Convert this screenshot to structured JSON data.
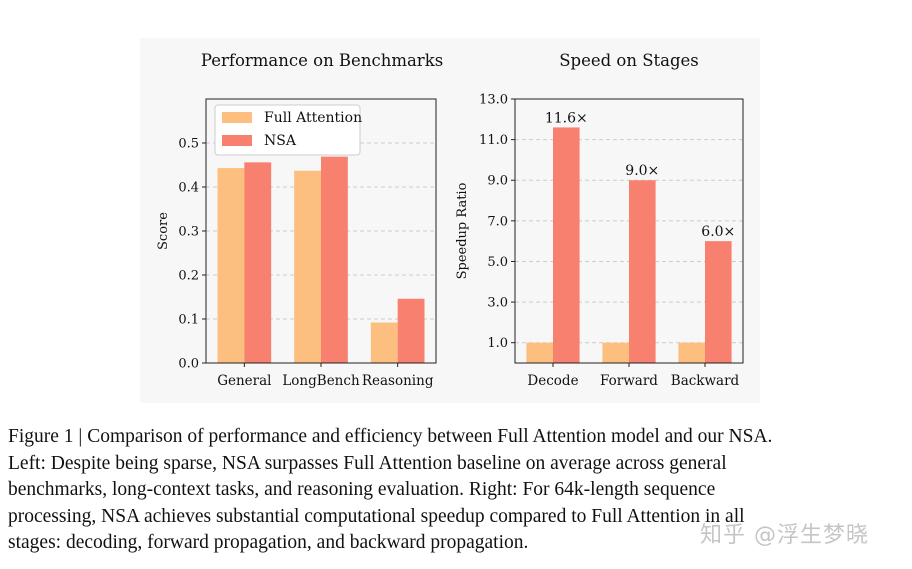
{
  "chart_data": [
    {
      "type": "bar",
      "title": "Performance on Benchmarks",
      "xlabel": "",
      "ylabel": "Score",
      "ylim": [
        0,
        0.6
      ],
      "yticks": [
        "0.0",
        "0.1",
        "0.2",
        "0.3",
        "0.4",
        "0.5"
      ],
      "categories": [
        "General",
        "LongBench",
        "Reasoning"
      ],
      "series": [
        {
          "name": "Full Attention",
          "values": [
            0.443,
            0.437,
            0.092
          ],
          "color": "#fdbf7f"
        },
        {
          "name": "NSA",
          "values": [
            0.456,
            0.469,
            0.146
          ],
          "color": "#f7806f"
        }
      ],
      "legend": "top-left",
      "grid": "horizontal dashed"
    },
    {
      "type": "bar",
      "title": "Speed on Stages",
      "xlabel": "",
      "ylabel": "Speedup Ratio",
      "ylim": [
        0,
        13.0
      ],
      "yticks": [
        "1.0",
        "3.0",
        "5.0",
        "7.0",
        "9.0",
        "11.0",
        "13.0"
      ],
      "categories": [
        "Decode",
        "Forward",
        "Backward"
      ],
      "series": [
        {
          "name": "Full Attention",
          "values": [
            1.0,
            1.0,
            1.0
          ],
          "color": "#fdbf7f"
        },
        {
          "name": "NSA",
          "values": [
            11.6,
            9.0,
            6.0
          ],
          "color": "#f7806f"
        }
      ],
      "data_labels": [
        "11.6×",
        "9.0×",
        "6.0×"
      ],
      "grid": "horizontal dashed"
    }
  ],
  "caption": {
    "lines": [
      "Figure 1 | Comparison of performance and efficiency between Full Attention model and our NSA.",
      "Left: Despite being sparse, NSA surpasses Full Attention baseline on average across general",
      "benchmarks, long-context tasks, and reasoning evaluation. Right: For 64k-length sequence",
      "processing, NSA achieves substantial computational speedup compared to Full Attention in all",
      "stages: decoding, forward propagation, and backward propagation."
    ]
  },
  "watermark": "知乎 @浮生梦晓"
}
